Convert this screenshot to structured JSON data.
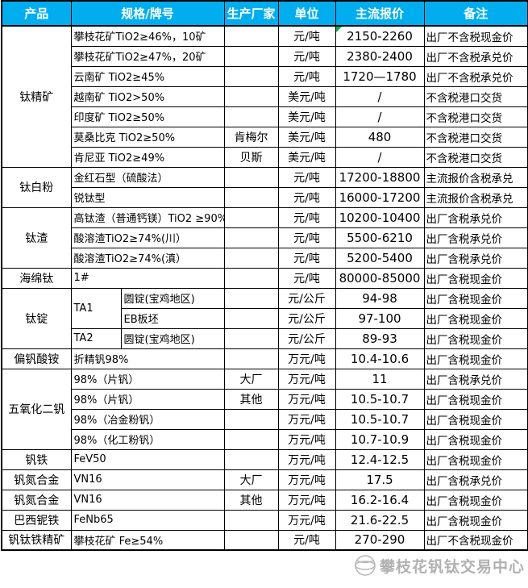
{
  "header": {
    "columns": [
      "产品",
      "规格/牌号",
      "生产厂家",
      "单位",
      "主流报价",
      "备注"
    ]
  },
  "colors": {
    "header_bg": "#00AEEF",
    "header_text": "#FFFFFF",
    "border": "#000000",
    "comment_marker_green": "#00B050",
    "watermark_grey": "#7D7D7D"
  },
  "groups": [
    {
      "product": "钛精矿",
      "rows": [
        {
          "spec": "攀枝花矿TiO2≥46%，10矿",
          "maker": "",
          "unit": "元/吨",
          "price": "2150-2260",
          "note": "出厂不含税现金价",
          "comment_marker": true
        },
        {
          "spec": "攀枝花矿TiO2≥47%，20矿",
          "maker": "",
          "unit": "元/吨",
          "price": "2380-2400",
          "note": "出厂不含税承兑价"
        },
        {
          "spec": "云南矿 TiO2≥45%",
          "maker": "",
          "unit": "元/吨",
          "price": "1720—1780",
          "note": "出厂不含税承兑价"
        },
        {
          "spec": "越南矿 TiO2>50%",
          "maker": "",
          "unit": "美元/吨",
          "price": "/",
          "note": "不含税港口交货"
        },
        {
          "spec": "印度矿 TiO2≥50%",
          "maker": "",
          "unit": "美元/吨",
          "price": "/",
          "note": "不含税港口交货"
        },
        {
          "spec": "莫桑比克 TiO2≥50%",
          "maker": "肯梅尔",
          "unit": "美元/吨",
          "price": "480",
          "note": "不含税港口交货"
        },
        {
          "spec": "肯尼亚 TiO2≥49%",
          "maker": "贝斯",
          "unit": "美元/吨",
          "price": "/",
          "note": "不含税港口交货"
        }
      ]
    },
    {
      "product": "钛白粉",
      "rows": [
        {
          "spec": "金红石型（硫酸法）",
          "maker": "",
          "unit": "元/吨",
          "price": "17200-18800",
          "note": "主流报价含税承兑"
        },
        {
          "spec": "锐钛型",
          "maker": "",
          "unit": "元/吨",
          "price": "16000-17200",
          "note": "主流报价含税承兑"
        }
      ]
    },
    {
      "product": "钛渣",
      "rows": [
        {
          "spec": "高钛渣（普通钙镁）TiO2 ≥90%",
          "maker": "",
          "unit": "元/吨",
          "price": "10200-10400",
          "note": "出厂含税承兑价"
        },
        {
          "spec": "酸溶渣TiO2≥74%(川）",
          "maker": "",
          "unit": "元/吨",
          "price": "5500-6210",
          "note": "出厂含税承兑价"
        },
        {
          "spec": "酸溶渣TiO2≥74%(滇）",
          "maker": "",
          "unit": "元/吨",
          "price": "5200-5400",
          "note": "出厂含税承兑价"
        }
      ]
    },
    {
      "product": "海绵钛",
      "rows": [
        {
          "spec": "1#",
          "maker": "",
          "unit": "元/吨",
          "price": "80000-85000",
          "note": "出厂含税现金价"
        }
      ]
    },
    {
      "product": "钛锭",
      "rows": [
        {
          "spec1": "TA1",
          "spec1_rowspan": 2,
          "spec2": "圆锭(宝鸡地区)",
          "maker": "",
          "unit": "元/公斤",
          "price": "94-98",
          "note": "出厂含税现金价"
        },
        {
          "spec2": "EB板坯",
          "maker": "",
          "unit": "元/公斤",
          "price": "97-100",
          "note": "出厂含税现金价"
        },
        {
          "spec1": "TA2",
          "spec1_rowspan": 1,
          "spec2": "圆锭(宝鸡地区)",
          "maker": "",
          "unit": "元/公斤",
          "price": "89-93",
          "note": "出厂含税现金价"
        }
      ]
    },
    {
      "product": "偏钒酸铵",
      "rows": [
        {
          "spec": "折精钒98%",
          "maker": "",
          "unit": "万元/吨",
          "price": "10.4-10.6",
          "note": "出厂含税现金价"
        }
      ]
    },
    {
      "product": "五氧化二钒",
      "rows": [
        {
          "spec": "98%（片钒）",
          "maker": "大厂",
          "unit": "万元/吨",
          "price": "11",
          "note": "出厂含税承兑价"
        },
        {
          "spec": "98%（片钒）",
          "maker": "其他",
          "unit": "万元/吨",
          "price": "10.5-10.7",
          "note": "出厂含税现金价"
        },
        {
          "spec": "98%（冶金粉钒）",
          "maker": "",
          "unit": "万元/吨",
          "price": "10.5-10.7",
          "note": "出厂含税现金价"
        },
        {
          "spec": "98%（化工粉钒）",
          "maker": "",
          "unit": "万元/吨",
          "price": "10.7-10.9",
          "note": "出厂含税现金价"
        }
      ]
    },
    {
      "product": "钒铁",
      "rows": [
        {
          "spec": "FeV50",
          "maker": "",
          "unit": "万元/吨",
          "price": "12.4-12.5",
          "note": "出厂含税现金价"
        }
      ]
    },
    {
      "product": "钒氮合金",
      "rows": [
        {
          "spec": "VN16",
          "maker": "大厂",
          "unit": "万元/吨",
          "price": "17.5",
          "note": "出厂含税承兑价"
        }
      ]
    },
    {
      "product": "钒氮合金",
      "rows": [
        {
          "spec": "VN16",
          "maker": "其他",
          "unit": "万元/吨",
          "price": "16.2-16.4",
          "note": "出厂含税现金价"
        }
      ]
    },
    {
      "product": "巴西铌铁",
      "rows": [
        {
          "spec": "FeNb65",
          "maker": "",
          "unit": "万元/吨",
          "price": "21.6-22.5",
          "note": "出厂含税现金价"
        }
      ]
    },
    {
      "product": "钒钛铁精矿",
      "rows": [
        {
          "spec": "攀枝花矿 Fe≥54%",
          "maker": "",
          "unit": "元/吨",
          "price": "270-290",
          "note": "出厂不含税现金价"
        }
      ]
    }
  ],
  "watermark": {
    "text": "攀枝花钒钛交易中心",
    "logo": "globe-icon"
  },
  "chart_data": {
    "type": "table",
    "title": "",
    "columns": [
      "产品",
      "规格/牌号",
      "生产厂家",
      "单位",
      "主流报价",
      "备注"
    ],
    "rows": [
      [
        "钛精矿",
        "攀枝花矿TiO2≥46%，10矿",
        "",
        "元/吨",
        "2150-2260",
        "出厂不含税现金价"
      ],
      [
        "钛精矿",
        "攀枝花矿TiO2≥47%，20矿",
        "",
        "元/吨",
        "2380-2400",
        "出厂不含税承兑价"
      ],
      [
        "钛精矿",
        "云南矿 TiO2≥45%",
        "",
        "元/吨",
        "1720—1780",
        "出厂不含税承兑价"
      ],
      [
        "钛精矿",
        "越南矿 TiO2>50%",
        "",
        "美元/吨",
        "/",
        "不含税港口交货"
      ],
      [
        "钛精矿",
        "印度矿 TiO2≥50%",
        "",
        "美元/吨",
        "/",
        "不含税港口交货"
      ],
      [
        "钛精矿",
        "莫桑比克 TiO2≥50%",
        "肯梅尔",
        "美元/吨",
        "480",
        "不含税港口交货"
      ],
      [
        "钛精矿",
        "肯尼亚 TiO2≥49%",
        "贝斯",
        "美元/吨",
        "/",
        "不含税港口交货"
      ],
      [
        "钛白粉",
        "金红石型（硫酸法）",
        "",
        "元/吨",
        "17200-18800",
        "主流报价含税承兑"
      ],
      [
        "钛白粉",
        "锐钛型",
        "",
        "元/吨",
        "16000-17200",
        "主流报价含税承兑"
      ],
      [
        "钛渣",
        "高钛渣（普通钙镁）TiO2 ≥90%",
        "",
        "元/吨",
        "10200-10400",
        "出厂含税承兑价"
      ],
      [
        "钛渣",
        "酸溶渣TiO2≥74%(川）",
        "",
        "元/吨",
        "5500-6210",
        "出厂含税承兑价"
      ],
      [
        "钛渣",
        "酸溶渣TiO2≥74%(滇）",
        "",
        "元/吨",
        "5200-5400",
        "出厂含税承兑价"
      ],
      [
        "海绵钛",
        "1#",
        "",
        "元/吨",
        "80000-85000",
        "出厂含税现金价"
      ],
      [
        "钛锭",
        "TA1 圆锭(宝鸡地区)",
        "",
        "元/公斤",
        "94-98",
        "出厂含税现金价"
      ],
      [
        "钛锭",
        "TA1 EB板坯",
        "",
        "元/公斤",
        "97-100",
        "出厂含税现金价"
      ],
      [
        "钛锭",
        "TA2 圆锭(宝鸡地区)",
        "",
        "元/公斤",
        "89-93",
        "出厂含税现金价"
      ],
      [
        "偏钒酸铵",
        "折精钒98%",
        "",
        "万元/吨",
        "10.4-10.6",
        "出厂含税现金价"
      ],
      [
        "五氧化二钒",
        "98%（片钒）",
        "大厂",
        "万元/吨",
        "11",
        "出厂含税承兑价"
      ],
      [
        "五氧化二钒",
        "98%（片钒）",
        "其他",
        "万元/吨",
        "10.5-10.7",
        "出厂含税现金价"
      ],
      [
        "五氧化二钒",
        "98%（冶金粉钒）",
        "",
        "万元/吨",
        "10.5-10.7",
        "出厂含税现金价"
      ],
      [
        "五氧化二钒",
        "98%（化工粉钒）",
        "",
        "万元/吨",
        "10.7-10.9",
        "出厂含税现金价"
      ],
      [
        "钒铁",
        "FeV50",
        "",
        "万元/吨",
        "12.4-12.5",
        "出厂含税现金价"
      ],
      [
        "钒氮合金",
        "VN16",
        "大厂",
        "万元/吨",
        "17.5",
        "出厂含税承兑价"
      ],
      [
        "钒氮合金",
        "VN16",
        "其他",
        "万元/吨",
        "16.2-16.4",
        "出厂含税现金价"
      ],
      [
        "巴西铌铁",
        "FeNb65",
        "",
        "万元/吨",
        "21.6-22.5",
        "出厂含税现金价"
      ],
      [
        "钒钛铁精矿",
        "攀枝花矿 Fe≥54%",
        "",
        "元/吨",
        "270-290",
        "出厂不含税现金价"
      ]
    ]
  }
}
